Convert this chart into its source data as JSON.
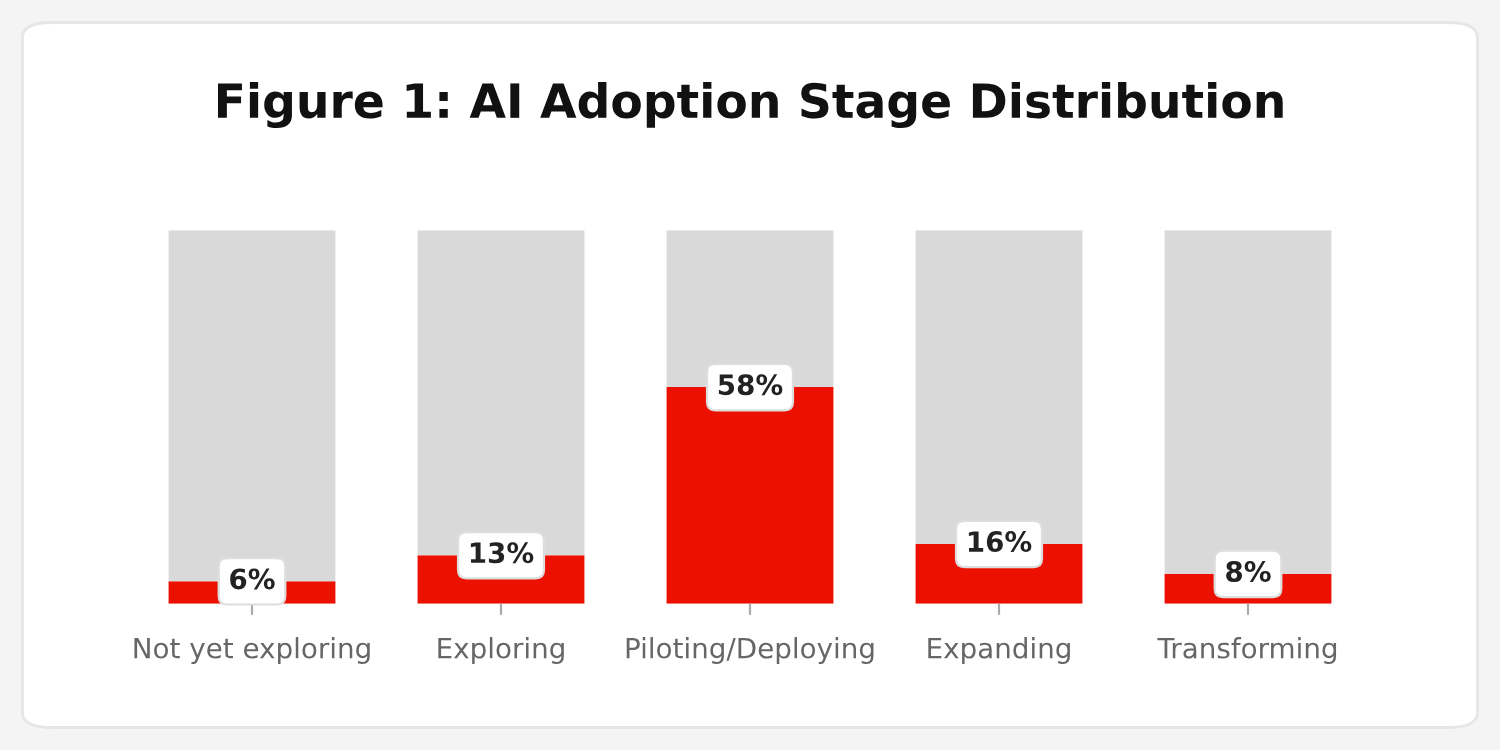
{
  "chart_data": {
    "type": "bar",
    "title": "Figure 1: AI Adoption Stage Distribution",
    "categories": [
      "Not yet exploring",
      "Exploring",
      "Piloting/Deploying",
      "Expanding",
      "Transforming"
    ],
    "stacked": true,
    "ylim": [
      0,
      100
    ],
    "tick_labels": "x",
    "grid": false,
    "legend": false,
    "series": [
      {
        "color": "#eb1000",
        "values": [
          6,
          13,
          58,
          16,
          8
        ],
        "value_labels": [
          "6%",
          "13%",
          "58%",
          "16%",
          "8%"
        ]
      },
      {
        "color": "#d9d9d9",
        "values": [
          94,
          87,
          42,
          84,
          92
        ]
      }
    ]
  }
}
